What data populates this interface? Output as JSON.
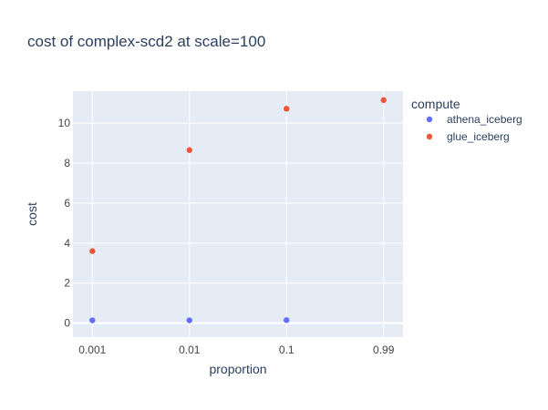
{
  "chart_data": {
    "type": "scatter",
    "title": "cost of complex-scd2 at scale=100",
    "xlabel": "proportion",
    "ylabel": "cost",
    "x_type": "category",
    "categories": [
      "0.001",
      "0.01",
      "0.1",
      "0.99"
    ],
    "ylim": [
      -0.7,
      11.6
    ],
    "yticks": [
      0,
      2,
      4,
      6,
      8,
      10
    ],
    "grid": true,
    "legend_title": "compute",
    "legend_position": "top-right",
    "series": [
      {
        "name": "athena_iceberg",
        "color": "#636efa",
        "x": [
          "0.001",
          "0.01",
          "0.1"
        ],
        "y": [
          0.14,
          0.14,
          0.15
        ]
      },
      {
        "name": "glue_iceberg",
        "color": "#ef553b",
        "x": [
          "0.001",
          "0.01",
          "0.1",
          "0.99"
        ],
        "y": [
          3.6,
          8.65,
          10.72,
          11.15
        ]
      }
    ]
  },
  "colors": {
    "plot_background": "#e5ecf6",
    "grid": "#ffffff",
    "text": "#2a3f5f",
    "tick_text": "#444444"
  }
}
